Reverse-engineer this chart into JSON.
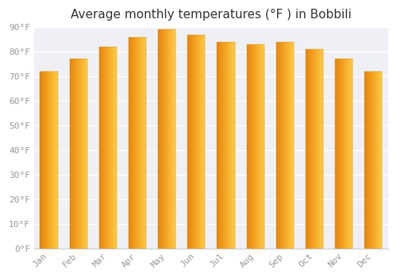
{
  "title": "Average monthly temperatures (°F ) in Bobbili",
  "months": [
    "Jan",
    "Feb",
    "Mar",
    "Apr",
    "May",
    "Jun",
    "Jul",
    "Aug",
    "Sep",
    "Oct",
    "Nov",
    "Dec"
  ],
  "values": [
    72,
    77,
    82,
    86,
    89,
    87,
    84,
    83,
    84,
    81,
    77,
    72
  ],
  "bar_color_left": "#E8840A",
  "bar_color_right": "#FFCC44",
  "background_color": "#FFFFFF",
  "plot_bg_color": "#EEF0F5",
  "grid_color": "#FFFFFF",
  "ylim": [
    0,
    90
  ],
  "yticks": [
    0,
    10,
    20,
    30,
    40,
    50,
    60,
    70,
    80,
    90
  ],
  "ylabel_suffix": "°F",
  "title_fontsize": 11,
  "tick_fontsize": 8,
  "tick_label_color": "#999999",
  "spine_color": "#CCCCCC",
  "bar_width": 0.6
}
